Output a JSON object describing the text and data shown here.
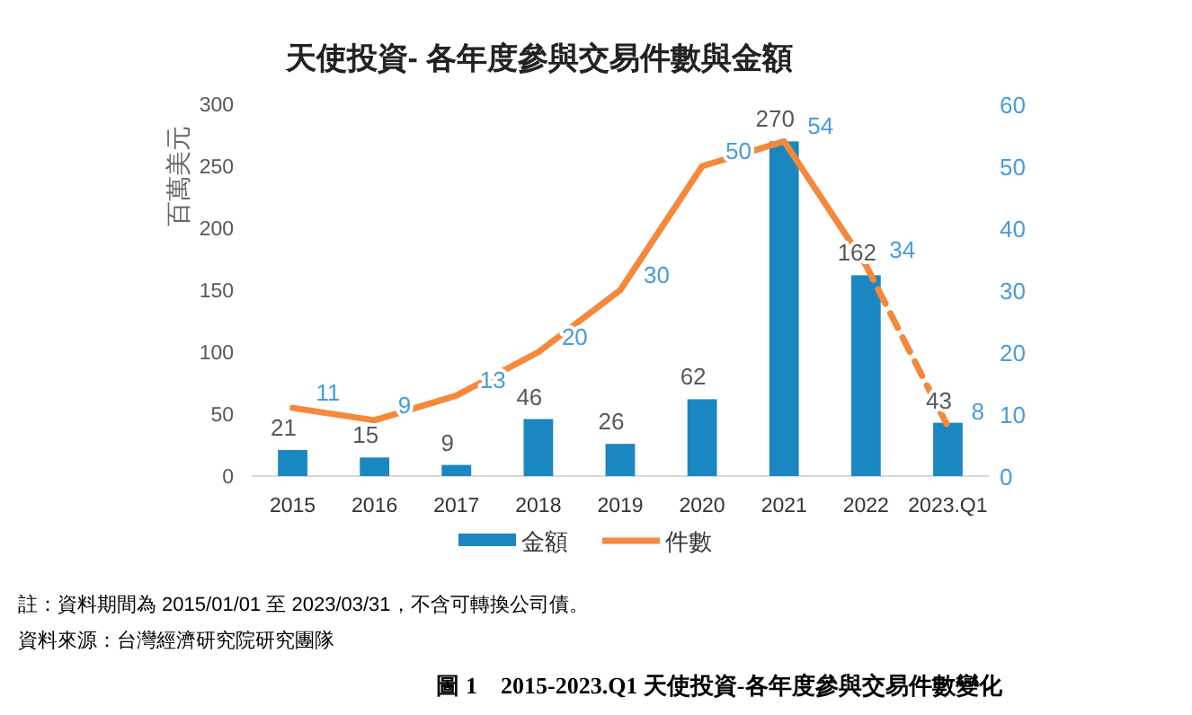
{
  "chart_data": {
    "type": "bar",
    "title": "天使投資- 各年度參與交易件數與金額",
    "ylabel": "百萬美元",
    "categories": [
      "2015",
      "2016",
      "2017",
      "2018",
      "2019",
      "2020",
      "2021",
      "2022",
      "2023.Q1"
    ],
    "series": [
      {
        "name": "金額",
        "color": "#1b87c1",
        "values": [
          21,
          15,
          9,
          46,
          26,
          62,
          270,
          162,
          43
        ]
      },
      {
        "type": "line",
        "name": "件數",
        "axis": "y2",
        "color": "#f5883a",
        "line_style": "solid",
        "values": [
          11,
          9,
          13,
          20,
          30,
          50,
          54,
          34,
          null
        ]
      },
      {
        "type": "line",
        "axis": "y2",
        "color": "#f5883a",
        "line_style": "dashed",
        "values": [
          null,
          null,
          null,
          null,
          null,
          null,
          null,
          34,
          8
        ],
        "value_labels": [
          null,
          null,
          null,
          null,
          null,
          null,
          null,
          null,
          "8"
        ]
      }
    ],
    "ylim": [
      0,
      300
    ],
    "yticks": [
      0,
      50,
      100,
      150,
      200,
      250,
      300
    ],
    "y2lim": [
      0,
      60
    ],
    "y2ticks": [
      0,
      10,
      20,
      30,
      40,
      50,
      60
    ],
    "data_labels": true,
    "legend": "bottom",
    "grid": false,
    "annotations": [
      "註：資料期間為 2015/01/01 至 2023/03/31，不含可轉換公司債。",
      "資料來源：台灣經濟研究院研究團隊",
      "圖 1　2015-2023.Q1 天使投資-各年度參與交易件數變化"
    ]
  }
}
